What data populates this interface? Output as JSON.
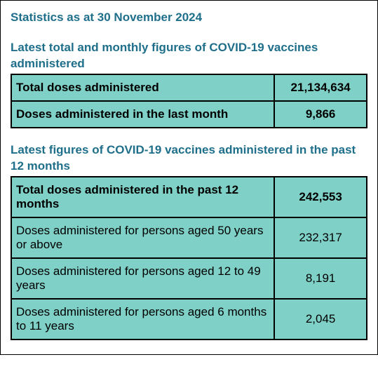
{
  "page": {
    "title": "Statistics as at 30 November 2024",
    "colors": {
      "heading": "#1f6f8b",
      "table_bg": "#7fd0c7",
      "border": "#000000",
      "text": "#000000",
      "page_bg": "#ffffff"
    },
    "font_family": "Arial",
    "title_fontsize": 17,
    "body_fontsize": 17
  },
  "section1": {
    "heading": "Latest total and monthly figures of COVID-19 vaccines administered",
    "table": {
      "type": "table",
      "columns": [
        "label",
        "value"
      ],
      "column_widths": [
        0.74,
        0.26
      ],
      "rows": [
        {
          "label": "Total doses administered",
          "value": "21,134,634",
          "bold": true
        },
        {
          "label": "Doses administered in the last month",
          "value": "9,866",
          "bold_label": true
        }
      ],
      "background_color": "#7fd0c7",
      "border_color": "#000000",
      "border_width": 2
    }
  },
  "section2": {
    "heading": "Latest figures of COVID-19 vaccines administered in the past 12 months",
    "table": {
      "type": "table",
      "columns": [
        "label",
        "value"
      ],
      "column_widths": [
        0.74,
        0.26
      ],
      "rows": [
        {
          "label": "Total doses administered in the past 12 months",
          "value": "242,553",
          "bold": true
        },
        {
          "label": "Doses administered for persons aged 50 years or above",
          "value": "232,317",
          "bold": false
        },
        {
          "label": "Doses administered for persons aged 12 to 49 years",
          "value": "8,191",
          "bold": false
        },
        {
          "label": "Doses administered for persons aged 6 months to 11 years",
          "value": "2,045",
          "bold": false
        }
      ],
      "background_color": "#7fd0c7",
      "border_color": "#000000",
      "border_width": 2
    }
  }
}
